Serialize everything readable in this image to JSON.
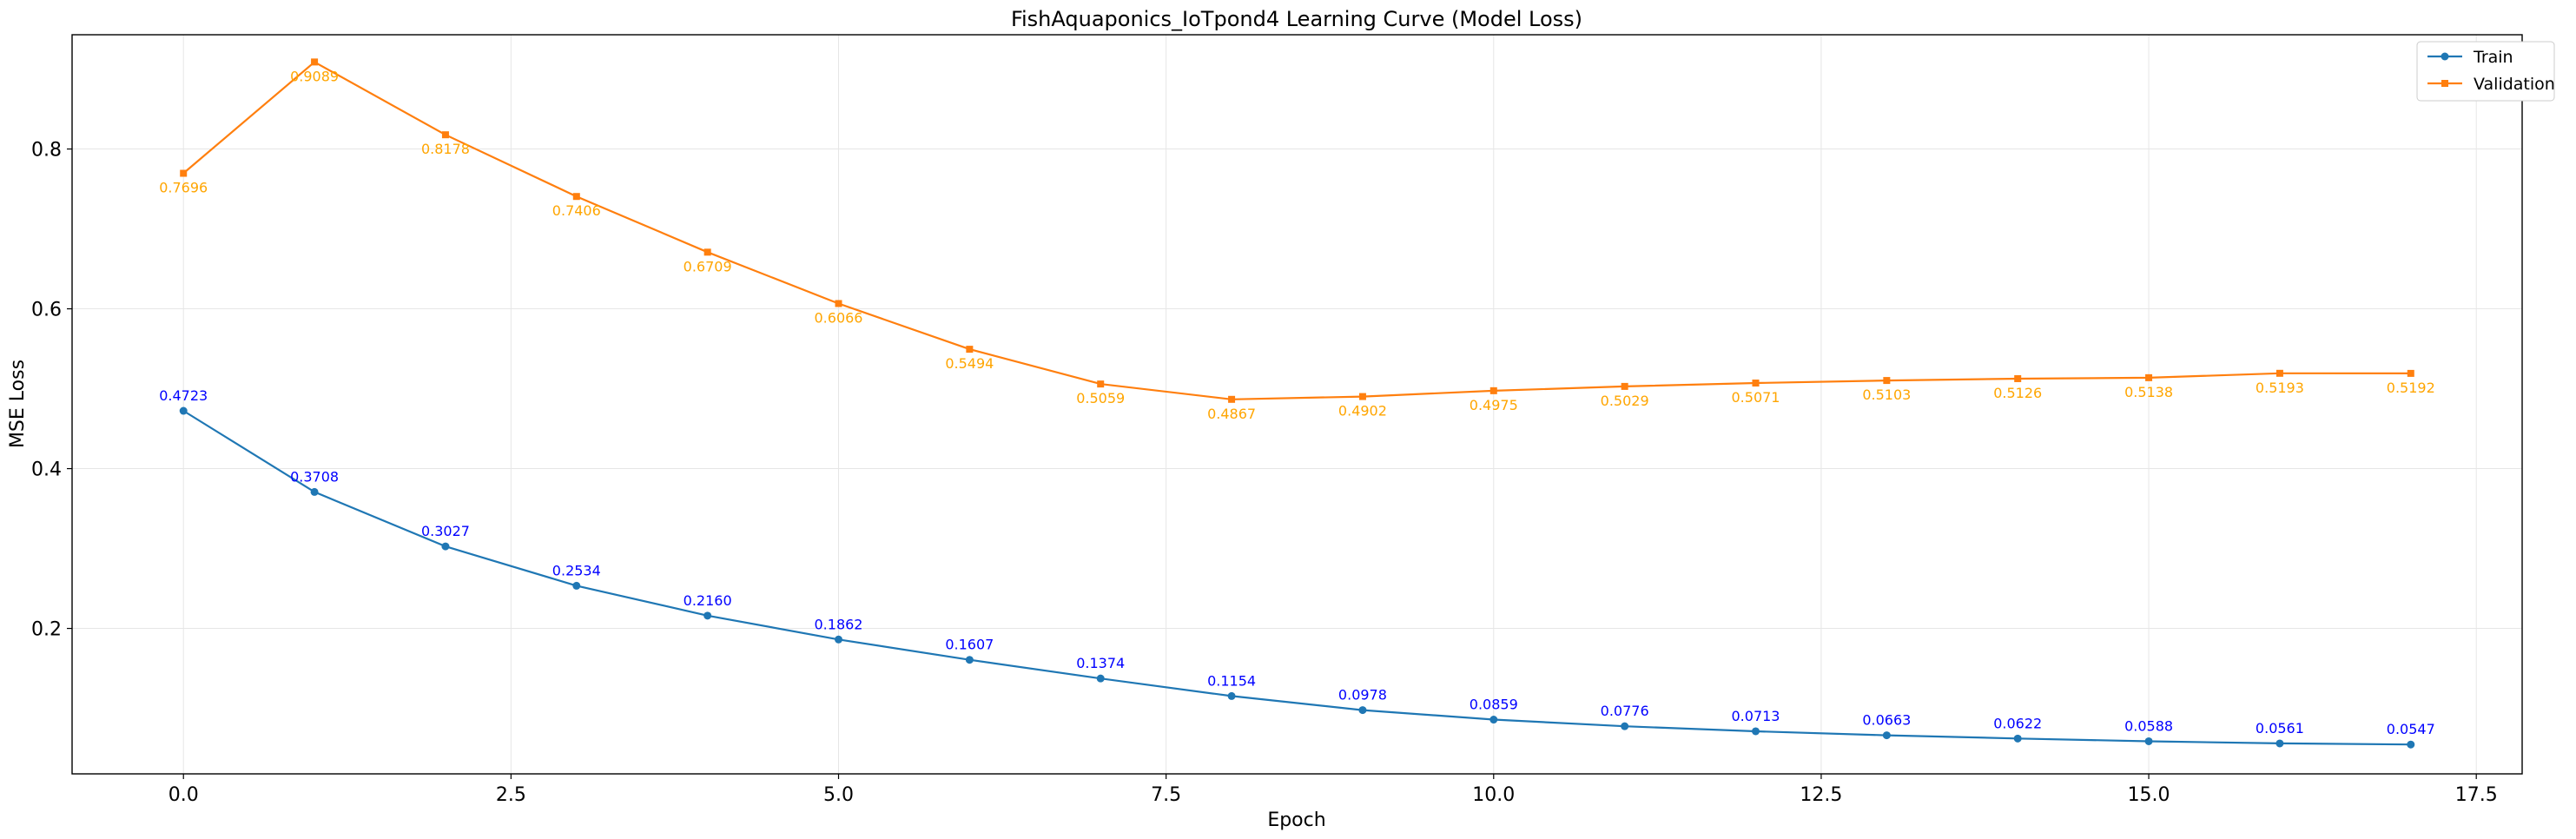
{
  "chart_data": {
    "type": "line",
    "title": "FishAquaponics_IoTpond4 Learning Curve (Model Loss)",
    "xlabel": "Epoch",
    "ylabel": "MSE Loss",
    "xlim": [
      -0.85,
      17.85
    ],
    "ylim": [
      0.018,
      0.943
    ],
    "xticks": [
      0.0,
      2.5,
      5.0,
      7.5,
      10.0,
      12.5,
      15.0,
      17.5
    ],
    "xtick_labels": [
      "0.0",
      "2.5",
      "5.0",
      "7.5",
      "10.0",
      "12.5",
      "15.0",
      "17.5"
    ],
    "yticks": [
      0.2,
      0.4,
      0.6,
      0.8
    ],
    "ytick_labels": [
      "0.2",
      "0.4",
      "0.6",
      "0.8"
    ],
    "grid": true,
    "legend_position": "top-right",
    "x": [
      0,
      1,
      2,
      3,
      4,
      5,
      6,
      7,
      8,
      9,
      10,
      11,
      12,
      13,
      14,
      15,
      16,
      17
    ],
    "series": [
      {
        "name": "Train",
        "color": "#1f77b4",
        "label_color": "#0000ff",
        "marker": "circle",
        "values": [
          0.4723,
          0.3708,
          0.3027,
          0.2534,
          0.216,
          0.1862,
          0.1607,
          0.1374,
          0.1154,
          0.0978,
          0.0859,
          0.0776,
          0.0713,
          0.0663,
          0.0622,
          0.0588,
          0.0561,
          0.0547
        ],
        "labels": [
          "0.4723",
          "0.3708",
          "0.3027",
          "0.2534",
          "0.2160",
          "0.1862",
          "0.1607",
          "0.1374",
          "0.1154",
          "0.0978",
          "0.0859",
          "0.0776",
          "0.0713",
          "0.0663",
          "0.0622",
          "0.0588",
          "0.0561",
          "0.0547"
        ]
      },
      {
        "name": "Validation",
        "color": "#ff7f0e",
        "label_color": "#ffa500",
        "marker": "square",
        "values": [
          0.7696,
          0.9089,
          0.8178,
          0.7406,
          0.6709,
          0.6066,
          0.5494,
          0.5059,
          0.4867,
          0.4902,
          0.4975,
          0.5029,
          0.5071,
          0.5103,
          0.5126,
          0.5138,
          0.5193,
          0.5192
        ],
        "labels": [
          "0.7696",
          "0.9089",
          "0.8178",
          "0.7406",
          "0.6709",
          "0.6066",
          "0.5494",
          "0.5059",
          "0.4867",
          "0.4902",
          "0.4975",
          "0.5029",
          "0.5071",
          "0.5103",
          "0.5126",
          "0.5138",
          "0.5193",
          "0.5192"
        ]
      }
    ]
  }
}
